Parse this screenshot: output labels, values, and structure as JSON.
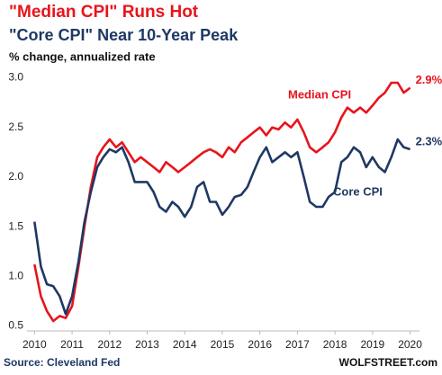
{
  "chart_data": {
    "type": "line",
    "title": "\"Median CPI\" Runs Hot",
    "subtitle": "\"Core CPI\" Near 10-Year Peak",
    "y_label": "% change, annualized rate",
    "source": "Source: Cleveland Fed",
    "credit": "WOLFSTREET.com",
    "x": [
      2010.0,
      2010.17,
      2010.33,
      2010.5,
      2010.67,
      2010.83,
      2011.0,
      2011.17,
      2011.33,
      2011.5,
      2011.67,
      2011.83,
      2012.0,
      2012.17,
      2012.33,
      2012.5,
      2012.67,
      2012.83,
      2013.0,
      2013.17,
      2013.33,
      2013.5,
      2013.67,
      2013.83,
      2014.0,
      2014.17,
      2014.33,
      2014.5,
      2014.67,
      2014.83,
      2015.0,
      2015.17,
      2015.33,
      2015.5,
      2015.67,
      2015.83,
      2016.0,
      2016.17,
      2016.33,
      2016.5,
      2016.67,
      2016.83,
      2017.0,
      2017.17,
      2017.33,
      2017.5,
      2017.67,
      2017.83,
      2018.0,
      2018.17,
      2018.33,
      2018.5,
      2018.67,
      2018.83,
      2019.0,
      2019.17,
      2019.33,
      2019.5,
      2019.67,
      2019.83,
      2020.0
    ],
    "series": [
      {
        "name": "Median CPI",
        "color": "#e8141c",
        "values": [
          1.12,
          0.8,
          0.65,
          0.55,
          0.6,
          0.58,
          0.7,
          1.1,
          1.5,
          1.9,
          2.2,
          2.3,
          2.38,
          2.3,
          2.35,
          2.25,
          2.15,
          2.2,
          2.15,
          2.1,
          2.05,
          2.15,
          2.1,
          2.05,
          2.1,
          2.15,
          2.2,
          2.25,
          2.28,
          2.25,
          2.2,
          2.3,
          2.25,
          2.35,
          2.4,
          2.45,
          2.5,
          2.42,
          2.5,
          2.48,
          2.55,
          2.5,
          2.58,
          2.45,
          2.3,
          2.25,
          2.3,
          2.35,
          2.45,
          2.6,
          2.7,
          2.65,
          2.7,
          2.65,
          2.72,
          2.8,
          2.85,
          2.95,
          2.95,
          2.85,
          2.9
        ],
        "value_labels": [
          null,
          null,
          null,
          null,
          null,
          null,
          null,
          null,
          null,
          null,
          null,
          null,
          null,
          null,
          null,
          null,
          null,
          null,
          null,
          null,
          null,
          null,
          null,
          null,
          null,
          null,
          null,
          null,
          null,
          null,
          null,
          null,
          null,
          null,
          null,
          null,
          null,
          null,
          null,
          null,
          null,
          null,
          null,
          null,
          null,
          null,
          null,
          null,
          null,
          null,
          null,
          null,
          null,
          null,
          null,
          null,
          null,
          null,
          null,
          null,
          "2.9%"
        ]
      },
      {
        "name": "Core CPI",
        "color": "#1f3864",
        "values": [
          1.55,
          1.1,
          0.92,
          0.9,
          0.8,
          0.62,
          0.8,
          1.15,
          1.55,
          1.85,
          2.1,
          2.2,
          2.28,
          2.25,
          2.3,
          2.15,
          1.95,
          1.95,
          1.95,
          1.85,
          1.7,
          1.65,
          1.75,
          1.7,
          1.6,
          1.7,
          1.9,
          1.95,
          1.75,
          1.75,
          1.62,
          1.7,
          1.8,
          1.82,
          1.9,
          2.05,
          2.2,
          2.3,
          2.15,
          2.2,
          2.25,
          2.2,
          2.25,
          2.0,
          1.75,
          1.7,
          1.7,
          1.8,
          1.85,
          2.15,
          2.2,
          2.3,
          2.25,
          2.1,
          2.2,
          2.1,
          2.05,
          2.2,
          2.38,
          2.3,
          2.28
        ],
        "value_labels": [
          null,
          null,
          null,
          null,
          null,
          null,
          null,
          null,
          null,
          null,
          null,
          null,
          null,
          null,
          null,
          null,
          null,
          null,
          null,
          null,
          null,
          null,
          null,
          null,
          null,
          null,
          null,
          null,
          null,
          null,
          null,
          null,
          null,
          null,
          null,
          null,
          null,
          null,
          null,
          null,
          null,
          null,
          null,
          null,
          null,
          null,
          null,
          null,
          null,
          null,
          null,
          null,
          null,
          null,
          null,
          null,
          null,
          null,
          null,
          null,
          "2.3%"
        ]
      }
    ],
    "xlim": [
      2009.8,
      2020.25
    ],
    "xticks": [
      2010,
      2011,
      2012,
      2013,
      2014,
      2015,
      2016,
      2017,
      2018,
      2019,
      2020
    ],
    "ylim": [
      0.45,
      3.05
    ],
    "yticks": [
      {
        "value": 0.5,
        "label": "0.5"
      },
      {
        "value": 1.0,
        "label": "1.0"
      },
      {
        "value": 1.5,
        "label": "1.5"
      },
      {
        "value": 2.0,
        "label": "2.0"
      },
      {
        "value": 2.5,
        "label": "2.5"
      },
      {
        "value": 3.0,
        "label": "3.0"
      }
    ],
    "grid": false
  }
}
